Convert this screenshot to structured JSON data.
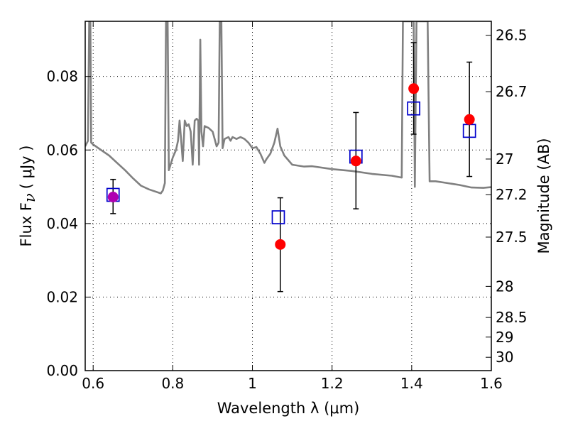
{
  "chart_data": {
    "type": "scatter",
    "title": "",
    "xlabel": "Wavelength  λ (μm)",
    "ylabel": "Flux  F",
    "ylabel_sub": "ν",
    "ylabel_unit": "( μJy )",
    "y2label": "Magnitude (AB)",
    "xlim": [
      0.58,
      1.6
    ],
    "ylim": [
      0.0,
      0.095
    ],
    "x_ticks": [
      0.6,
      0.8,
      1.0,
      1.2,
      1.4,
      1.6
    ],
    "x_tick_labels": [
      "0.6",
      "0.8",
      "1",
      "1.2",
      "1.4",
      "1.6"
    ],
    "y_ticks": [
      0.0,
      0.02,
      0.04,
      0.06,
      0.08
    ],
    "y_tick_labels": [
      "0.00",
      "0.02",
      "0.04",
      "0.06",
      "0.08"
    ],
    "y2_ticks": [
      {
        "mag": 26.5,
        "label": "26.5"
      },
      {
        "mag": 26.7,
        "label": "26.7"
      },
      {
        "mag": 27.0,
        "label": "27"
      },
      {
        "mag": 27.2,
        "label": "27.2"
      },
      {
        "mag": 27.5,
        "label": "27.5"
      },
      {
        "mag": 28.0,
        "label": "28"
      },
      {
        "mag": 28.5,
        "label": "28.5"
      },
      {
        "mag": 29.0,
        "label": "29"
      },
      {
        "mag": 30.0,
        "label": "30"
      }
    ],
    "grid": true,
    "colors": {
      "observed": "#ff0000",
      "observed_first": "#b000b0",
      "model": "#0000cc",
      "spectrum": "#808080",
      "errorbar": "#000000"
    },
    "observed": [
      {
        "x": 0.65,
        "y": 0.0472,
        "yerr_low": 0.0045,
        "yerr_high": 0.0048
      },
      {
        "x": 1.07,
        "y": 0.0343,
        "yerr_low": 0.0128,
        "yerr_high": 0.0127
      },
      {
        "x": 1.26,
        "y": 0.057,
        "yerr_low": 0.013,
        "yerr_high": 0.0132
      },
      {
        "x": 1.405,
        "y": 0.0767,
        "yerr_low": 0.0124,
        "yerr_high": 0.0125
      },
      {
        "x": 1.545,
        "y": 0.0683,
        "yerr_low": 0.0155,
        "yerr_high": 0.0156
      }
    ],
    "model_photometry": [
      {
        "x": 0.65,
        "y": 0.0478
      },
      {
        "x": 1.065,
        "y": 0.0417
      },
      {
        "x": 1.26,
        "y": 0.0582
      },
      {
        "x": 1.405,
        "y": 0.0713
      },
      {
        "x": 1.545,
        "y": 0.0652
      }
    ],
    "spectrum": [
      [
        0.58,
        0.061
      ],
      [
        0.587,
        0.0625
      ],
      [
        0.59,
        0.095
      ],
      [
        0.593,
        0.095
      ],
      [
        0.595,
        0.062
      ],
      [
        0.6,
        0.0615
      ],
      [
        0.62,
        0.06
      ],
      [
        0.64,
        0.0585
      ],
      [
        0.66,
        0.0565
      ],
      [
        0.68,
        0.0545
      ],
      [
        0.7,
        0.0523
      ],
      [
        0.72,
        0.0503
      ],
      [
        0.74,
        0.0493
      ],
      [
        0.77,
        0.0482
      ],
      [
        0.775,
        0.049
      ],
      [
        0.78,
        0.051
      ],
      [
        0.783,
        0.095
      ],
      [
        0.787,
        0.095
      ],
      [
        0.79,
        0.0545
      ],
      [
        0.8,
        0.058
      ],
      [
        0.808,
        0.06
      ],
      [
        0.813,
        0.0625
      ],
      [
        0.817,
        0.068
      ],
      [
        0.82,
        0.064
      ],
      [
        0.825,
        0.057
      ],
      [
        0.83,
        0.068
      ],
      [
        0.835,
        0.0665
      ],
      [
        0.84,
        0.067
      ],
      [
        0.845,
        0.065
      ],
      [
        0.85,
        0.056
      ],
      [
        0.855,
        0.068
      ],
      [
        0.86,
        0.0685
      ],
      [
        0.864,
        0.068
      ],
      [
        0.866,
        0.056
      ],
      [
        0.869,
        0.09
      ],
      [
        0.872,
        0.065
      ],
      [
        0.876,
        0.061
      ],
      [
        0.88,
        0.0665
      ],
      [
        0.89,
        0.066
      ],
      [
        0.9,
        0.065
      ],
      [
        0.91,
        0.061
      ],
      [
        0.915,
        0.062
      ],
      [
        0.918,
        0.095
      ],
      [
        0.922,
        0.095
      ],
      [
        0.925,
        0.0605
      ],
      [
        0.93,
        0.063
      ],
      [
        0.94,
        0.0635
      ],
      [
        0.945,
        0.0625
      ],
      [
        0.95,
        0.0635
      ],
      [
        0.96,
        0.063
      ],
      [
        0.97,
        0.0635
      ],
      [
        0.98,
        0.063
      ],
      [
        0.99,
        0.062
      ],
      [
        1.0,
        0.0605
      ],
      [
        1.01,
        0.0608
      ],
      [
        1.02,
        0.059
      ],
      [
        1.03,
        0.0565
      ],
      [
        1.035,
        0.0575
      ],
      [
        1.045,
        0.059
      ],
      [
        1.055,
        0.062
      ],
      [
        1.063,
        0.0658
      ],
      [
        1.07,
        0.061
      ],
      [
        1.08,
        0.0585
      ],
      [
        1.1,
        0.056
      ],
      [
        1.13,
        0.0555
      ],
      [
        1.15,
        0.0556
      ],
      [
        1.2,
        0.0548
      ],
      [
        1.25,
        0.0543
      ],
      [
        1.3,
        0.0535
      ],
      [
        1.35,
        0.053
      ],
      [
        1.375,
        0.0525
      ],
      [
        1.378,
        0.095
      ],
      [
        1.382,
        0.095
      ],
      [
        1.388,
        0.095
      ],
      [
        1.398,
        0.095
      ],
      [
        1.402,
        0.095
      ],
      [
        1.405,
        0.095
      ],
      [
        1.408,
        0.05
      ],
      [
        1.412,
        0.095
      ],
      [
        1.425,
        0.095
      ],
      [
        1.435,
        0.095
      ],
      [
        1.44,
        0.095
      ],
      [
        1.445,
        0.0515
      ],
      [
        1.46,
        0.0515
      ],
      [
        1.49,
        0.051
      ],
      [
        1.52,
        0.0505
      ],
      [
        1.55,
        0.0498
      ],
      [
        1.58,
        0.0497
      ],
      [
        1.6,
        0.0499
      ]
    ]
  }
}
